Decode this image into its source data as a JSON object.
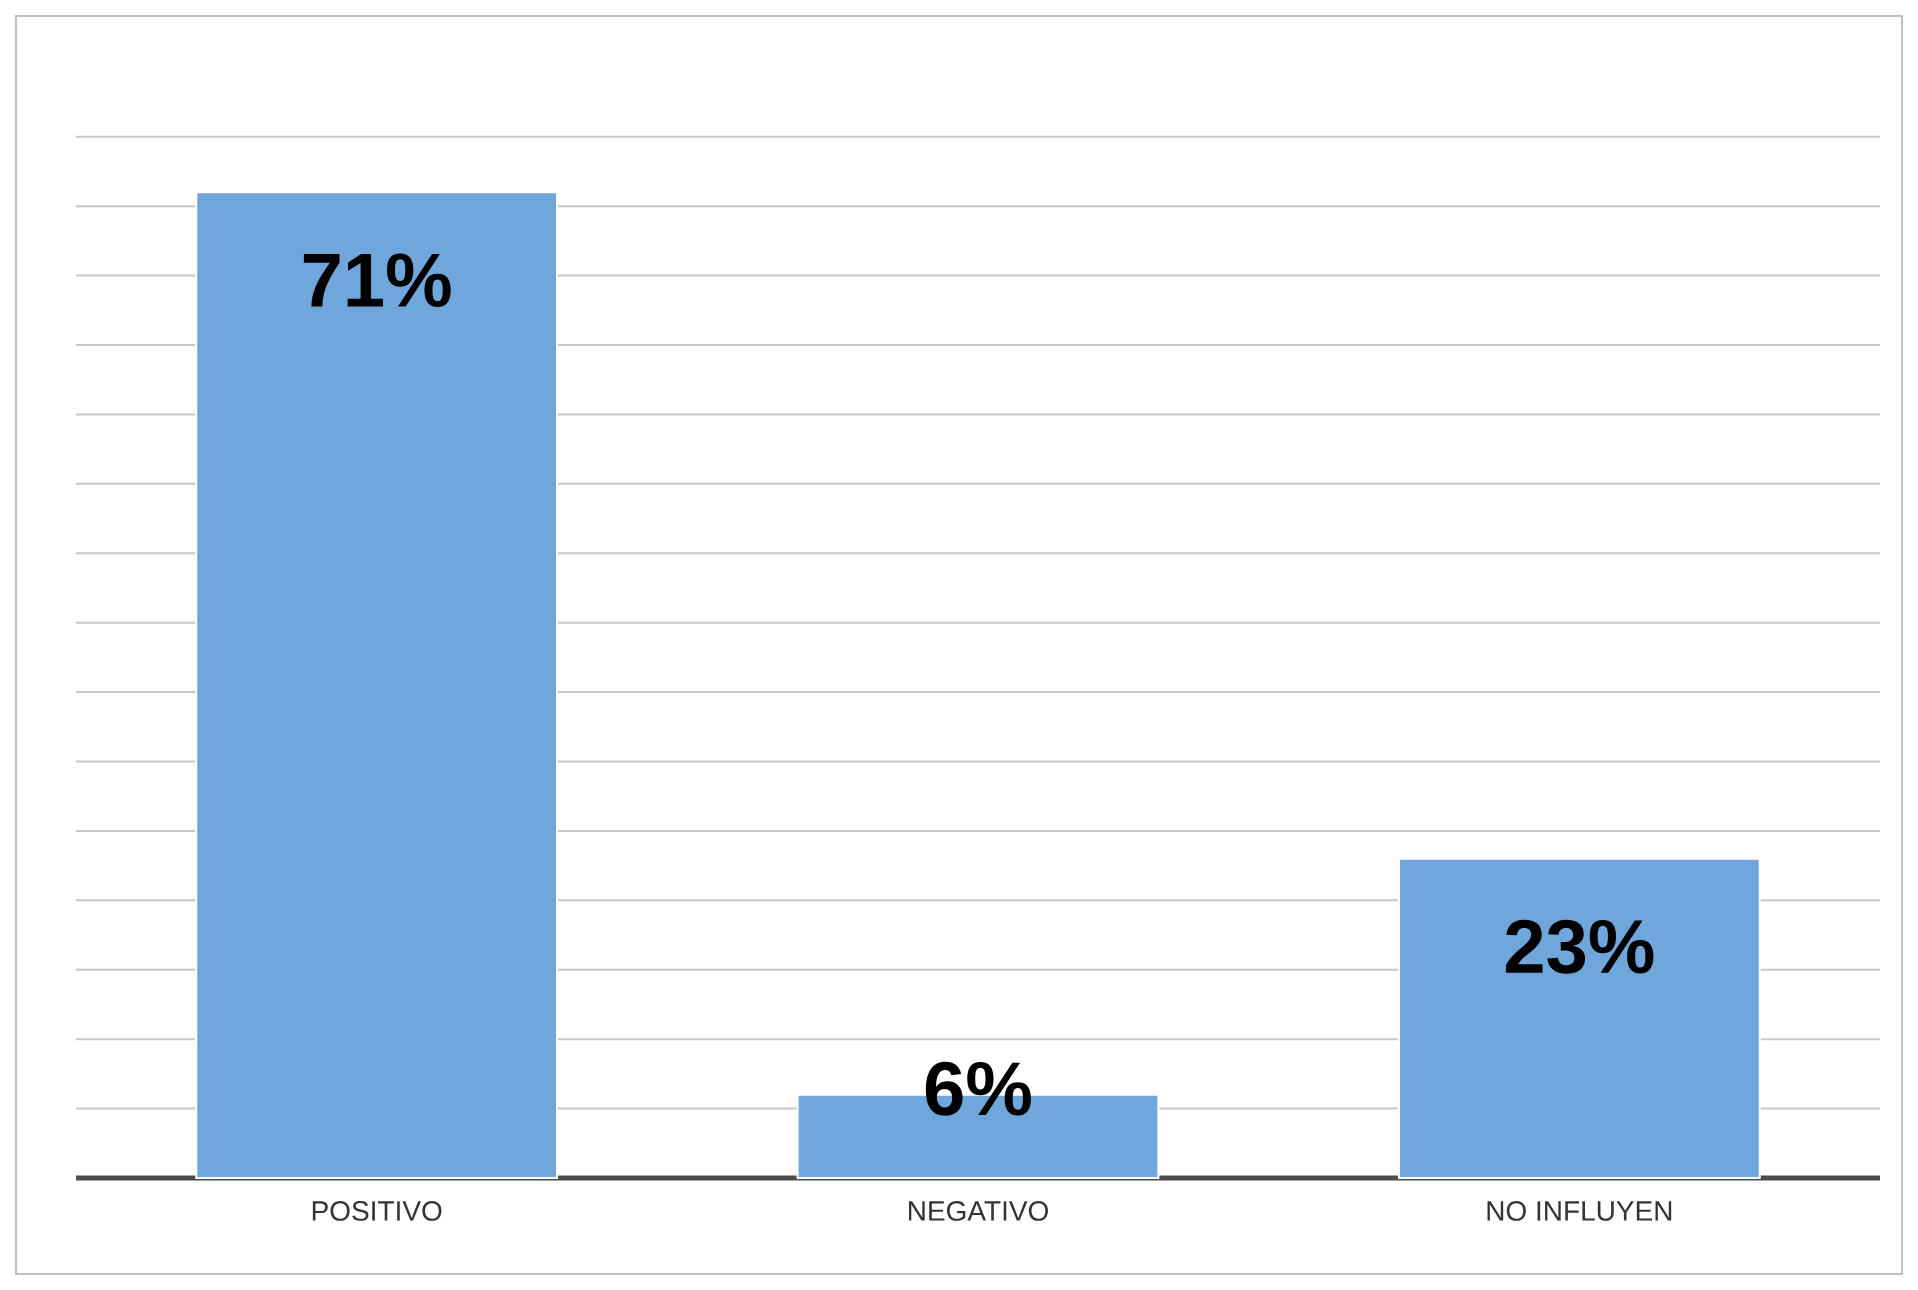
{
  "chart_data": {
    "type": "bar",
    "categories": [
      "POSITIVO",
      "NEGATIVO",
      "NO INFLUYEN"
    ],
    "values": [
      71,
      6,
      23
    ],
    "value_labels": [
      "71%",
      "6%",
      "23%"
    ],
    "color": "#6fa6dc",
    "tick_labels": "x",
    "grid": "y"
  }
}
